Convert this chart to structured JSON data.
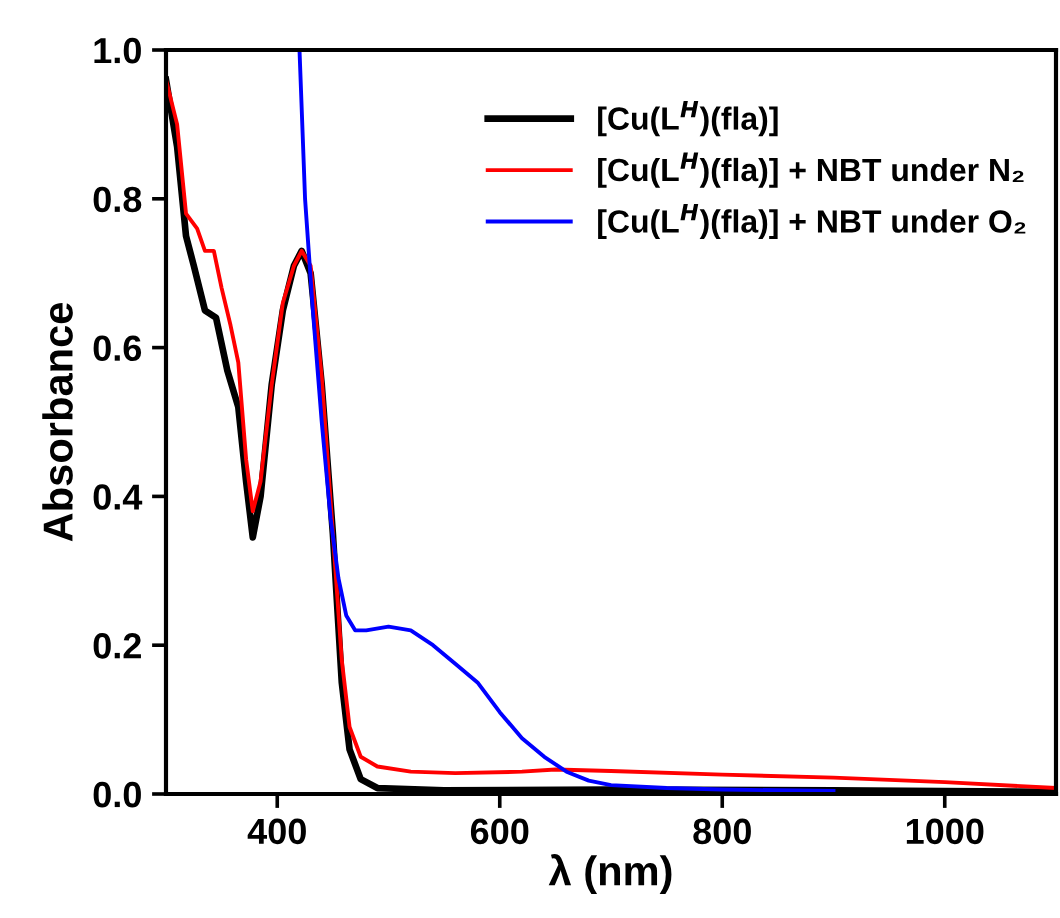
{
  "chart_data": {
    "type": "line",
    "xlabel": "λ (nm)",
    "ylabel": "Absorbance",
    "xlim": [
      300,
      1100
    ],
    "ylim": [
      0,
      1.0
    ],
    "xticks": [
      400,
      600,
      800,
      1000
    ],
    "yticks": [
      {
        "value": 0,
        "label": "0.0"
      },
      0.2,
      0.4,
      0.6,
      0.8,
      {
        "value": 1.0,
        "label": "1.0"
      }
    ],
    "legend": "top right",
    "grid": false,
    "marker": "none",
    "line_style": "solid",
    "series": [
      {
        "name": "[Cu(L$^{H}$)(fla)]",
        "color": "#000000",
        "x": [
          300,
          310,
          318,
          325,
          335,
          345,
          355,
          365,
          372,
          378,
          385,
          395,
          405,
          415,
          422,
          430,
          440,
          450,
          458,
          465,
          475,
          490,
          550,
          700,
          900,
          1100
        ],
        "values": [
          0.96,
          0.87,
          0.75,
          0.71,
          0.65,
          0.64,
          0.57,
          0.52,
          0.42,
          0.345,
          0.4,
          0.55,
          0.65,
          0.71,
          0.73,
          0.7,
          0.55,
          0.35,
          0.15,
          0.06,
          0.02,
          0.008,
          0.005,
          0.006,
          0.005,
          0.003
        ]
      },
      {
        "name": "[Cu(L$^{H}$)(fla)] + NBT under N₂",
        "color": "#ff0000",
        "x": [
          300,
          310,
          318,
          328,
          335,
          343,
          350,
          358,
          365,
          372,
          378,
          385,
          395,
          405,
          415,
          422,
          430,
          440,
          450,
          458,
          465,
          475,
          490,
          520,
          560,
          620,
          650,
          700,
          800,
          900,
          1000,
          1100
        ],
        "values": [
          0.96,
          0.9,
          0.78,
          0.76,
          0.73,
          0.73,
          0.68,
          0.63,
          0.58,
          0.45,
          0.38,
          0.42,
          0.55,
          0.66,
          0.71,
          0.73,
          0.71,
          0.56,
          0.35,
          0.18,
          0.09,
          0.05,
          0.037,
          0.03,
          0.028,
          0.03,
          0.033,
          0.031,
          0.026,
          0.022,
          0.016,
          0.008
        ]
      },
      {
        "name": "[Cu(L$^{H}$)(fla)] + NBT under O₂",
        "color": "#0000ff",
        "x": [
          420,
          425,
          432,
          440,
          448,
          455,
          462,
          470,
          480,
          500,
          520,
          540,
          560,
          580,
          600,
          620,
          640,
          660,
          680,
          700,
          750,
          800,
          900
        ],
        "values": [
          1.0,
          0.8,
          0.65,
          0.5,
          0.37,
          0.29,
          0.24,
          0.22,
          0.22,
          0.225,
          0.22,
          0.2,
          0.175,
          0.15,
          0.11,
          0.075,
          0.05,
          0.03,
          0.018,
          0.012,
          0.008,
          0.006,
          0.004
        ]
      }
    ]
  }
}
